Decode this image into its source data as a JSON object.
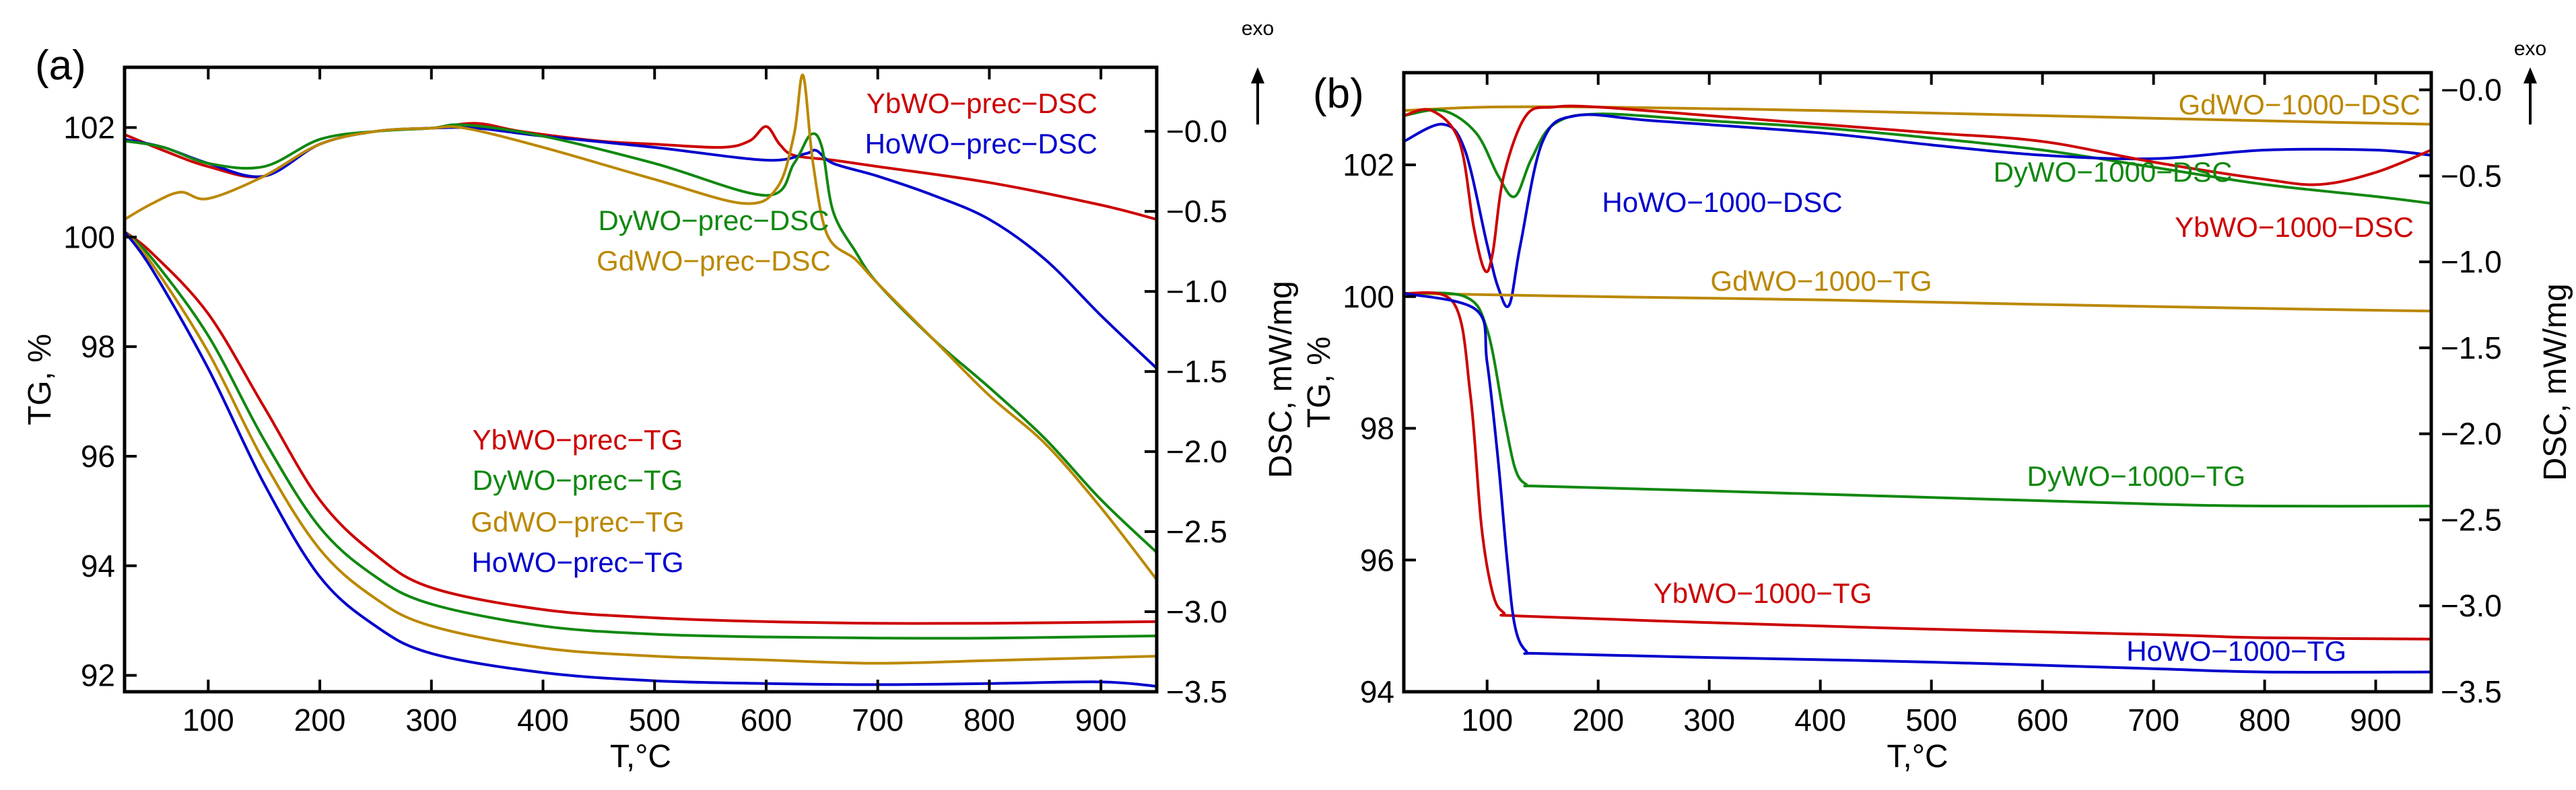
{
  "chart_data": [
    {
      "panel_label": "(a)",
      "type": "line",
      "xlabel": "T,°C",
      "ylabel_left": "TG, %",
      "ylabel_right": "DSC, mW/mg",
      "exo_label": "exo",
      "xlim": [
        25,
        950
      ],
      "ylim_left": [
        91.7,
        103.1
      ],
      "ylim_right": [
        -3.5,
        0.4
      ],
      "xticks": [
        100,
        200,
        300,
        400,
        500,
        600,
        700,
        800,
        900
      ],
      "yticks_left": [
        92,
        94,
        96,
        98,
        100,
        102
      ],
      "yticks_right": [
        -3.5,
        -3.0,
        -2.5,
        -2.0,
        -1.5,
        -1.0,
        -0.5,
        0.0
      ],
      "ytick_labels_right": [
        "−3.5",
        "−3.0",
        "−2.5",
        "−2.0",
        "−1.5",
        "−1.0",
        "−0.5",
        "−0.0"
      ],
      "series": [
        {
          "name": "YbWO−prec−DSC",
          "axis": "right",
          "color": "#cc0000",
          "x": [
            25,
            60,
            100,
            150,
            200,
            250,
            300,
            340,
            380,
            450,
            500,
            560,
            585,
            600,
            612,
            625,
            660,
            700,
            800,
            900,
            950
          ],
          "y": [
            -0.02,
            -0.12,
            -0.22,
            -0.28,
            -0.08,
            0.0,
            0.02,
            0.05,
            0.0,
            -0.06,
            -0.08,
            -0.1,
            -0.06,
            0.03,
            -0.08,
            -0.15,
            -0.18,
            -0.22,
            -0.32,
            -0.46,
            -0.55
          ]
        },
        {
          "name": "HoWO−prec−DSC",
          "axis": "right",
          "color": "#0000cc",
          "x": [
            25,
            60,
            100,
            150,
            200,
            250,
            300,
            340,
            400,
            500,
            600,
            635,
            645,
            660,
            700,
            750,
            800,
            850,
            900,
            950
          ],
          "y": [
            -0.05,
            -0.1,
            -0.2,
            -0.28,
            -0.08,
            0.0,
            0.02,
            0.02,
            -0.03,
            -0.1,
            -0.18,
            -0.14,
            -0.12,
            -0.2,
            -0.28,
            -0.4,
            -0.55,
            -0.8,
            -1.15,
            -1.48
          ]
        },
        {
          "name": "DyWO−prec−DSC",
          "axis": "right",
          "color": "#118811",
          "x": [
            25,
            60,
            100,
            150,
            200,
            250,
            300,
            330,
            400,
            500,
            600,
            625,
            640,
            650,
            660,
            680,
            700,
            750,
            800,
            850,
            900,
            950
          ],
          "y": [
            -0.06,
            -0.1,
            -0.2,
            -0.22,
            -0.05,
            0.0,
            0.02,
            0.04,
            -0.03,
            -0.2,
            -0.4,
            -0.2,
            -0.02,
            -0.1,
            -0.5,
            -0.75,
            -0.95,
            -1.3,
            -1.6,
            -1.92,
            -2.3,
            -2.63
          ]
        },
        {
          "name": "GdWO−prec−DSC",
          "axis": "right",
          "color": "#bb8800",
          "x": [
            25,
            50,
            75,
            100,
            150,
            200,
            250,
            300,
            330,
            400,
            500,
            580,
            610,
            625,
            633,
            642,
            655,
            680,
            700,
            750,
            800,
            850,
            900,
            950
          ],
          "y": [
            -0.55,
            -0.45,
            -0.38,
            -0.42,
            -0.28,
            -0.08,
            0.0,
            0.02,
            0.02,
            -0.1,
            -0.3,
            -0.45,
            -0.35,
            -0.02,
            0.35,
            -0.2,
            -0.65,
            -0.8,
            -0.95,
            -1.3,
            -1.65,
            -1.95,
            -2.35,
            -2.8
          ]
        },
        {
          "name": "YbWO−prec−TG",
          "axis": "left",
          "color": "#cc0000",
          "x": [
            25,
            50,
            100,
            150,
            200,
            250,
            300,
            400,
            500,
            600,
            700,
            800,
            950
          ],
          "y": [
            100.1,
            99.7,
            98.6,
            96.9,
            95.2,
            94.2,
            93.6,
            93.2,
            93.05,
            92.98,
            92.95,
            92.95,
            92.98
          ]
        },
        {
          "name": "DyWO−prec−TG",
          "axis": "left",
          "color": "#118811",
          "x": [
            25,
            50,
            100,
            150,
            200,
            250,
            300,
            400,
            500,
            600,
            700,
            800,
            950
          ],
          "y": [
            100.1,
            99.6,
            98.2,
            96.3,
            94.7,
            93.8,
            93.3,
            92.9,
            92.75,
            92.7,
            92.68,
            92.68,
            92.72
          ]
        },
        {
          "name": "GdWO−prec−TG",
          "axis": "left",
          "color": "#bb8800",
          "x": [
            25,
            50,
            100,
            150,
            200,
            250,
            300,
            400,
            500,
            600,
            700,
            800,
            950
          ],
          "y": [
            100.1,
            99.5,
            97.9,
            95.9,
            94.3,
            93.4,
            92.9,
            92.5,
            92.35,
            92.28,
            92.22,
            92.27,
            92.35
          ]
        },
        {
          "name": "HoWO−prec−TG",
          "axis": "left",
          "color": "#0000cc",
          "x": [
            25,
            50,
            100,
            150,
            200,
            250,
            300,
            400,
            500,
            600,
            700,
            800,
            900,
            950
          ],
          "y": [
            100.1,
            99.4,
            97.6,
            95.5,
            93.8,
            92.9,
            92.4,
            92.05,
            91.9,
            91.85,
            91.83,
            91.85,
            91.88,
            91.8
          ]
        }
      ],
      "annotations": [
        {
          "text": "YbWO−prec−DSC",
          "color": "#cc0000"
        },
        {
          "text": "HoWO−prec−DSC",
          "color": "#0000cc"
        },
        {
          "text": "DyWO−prec−DSC",
          "color": "#118811"
        },
        {
          "text": "GdWO−prec−DSC",
          "color": "#bb8800"
        },
        {
          "text": "YbWO−prec−TG",
          "color": "#cc0000"
        },
        {
          "text": "DyWO−prec−TG",
          "color": "#118811"
        },
        {
          "text": "GdWO−prec−TG",
          "color": "#bb8800"
        },
        {
          "text": "HoWO−prec−TG",
          "color": "#0000cc"
        }
      ]
    },
    {
      "panel_label": "(b)",
      "type": "line",
      "xlabel": "T,°C",
      "ylabel_left": "TG, %",
      "ylabel_right": "DSC, mW/mg",
      "exo_label": "exo",
      "xlim": [
        25,
        950
      ],
      "ylim_left": [
        94.0,
        103.4
      ],
      "ylim_right": [
        -3.5,
        0.1
      ],
      "xticks": [
        100,
        200,
        300,
        400,
        500,
        600,
        700,
        800,
        900
      ],
      "yticks_left": [
        94,
        96,
        98,
        100,
        102
      ],
      "yticks_right": [
        -3.5,
        -3.0,
        -2.5,
        -2.0,
        -1.5,
        -1.0,
        -0.5,
        0.0
      ],
      "ytick_labels_right": [
        "−3.5",
        "−3.0",
        "−2.5",
        "−2.0",
        "−1.5",
        "−1.0",
        "−0.5",
        "−0.0"
      ],
      "series": [
        {
          "name": "GdWO−1000−DSC",
          "axis": "right",
          "color": "#bb8800",
          "x": [
            25,
            100,
            200,
            400,
            600,
            800,
            950
          ],
          "y": [
            -0.12,
            -0.1,
            -0.1,
            -0.12,
            -0.15,
            -0.18,
            -0.2
          ]
        },
        {
          "name": "DyWO−1000−DSC",
          "axis": "right",
          "color": "#118811",
          "x": [
            25,
            60,
            90,
            110,
            125,
            140,
            160,
            200,
            300,
            400,
            500,
            600,
            700,
            800,
            900,
            950
          ],
          "y": [
            -0.15,
            -0.12,
            -0.25,
            -0.5,
            -0.62,
            -0.4,
            -0.2,
            -0.14,
            -0.18,
            -0.22,
            -0.28,
            -0.35,
            -0.45,
            -0.55,
            -0.62,
            -0.66
          ]
        },
        {
          "name": "HoWO−1000−DSC",
          "axis": "right",
          "color": "#0000cc",
          "x": [
            25,
            60,
            80,
            100,
            110,
            120,
            130,
            150,
            180,
            250,
            400,
            500,
            600,
            700,
            800,
            900,
            950
          ],
          "y": [
            -0.3,
            -0.2,
            -0.35,
            -0.9,
            -1.15,
            -1.25,
            -0.9,
            -0.3,
            -0.15,
            -0.18,
            -0.25,
            -0.32,
            -0.38,
            -0.4,
            -0.35,
            -0.35,
            -0.38
          ]
        },
        {
          "name": "YbWO−1000−DSC",
          "axis": "right",
          "color": "#cc0000",
          "x": [
            25,
            50,
            75,
            88,
            98,
            105,
            115,
            135,
            160,
            200,
            300,
            400,
            500,
            600,
            700,
            800,
            850,
            900,
            950
          ],
          "y": [
            -0.15,
            -0.12,
            -0.3,
            -0.8,
            -1.05,
            -0.95,
            -0.5,
            -0.15,
            -0.1,
            -0.1,
            -0.15,
            -0.2,
            -0.25,
            -0.3,
            -0.42,
            -0.52,
            -0.55,
            -0.48,
            -0.35
          ]
        },
        {
          "name": "GdWO−1000−TG",
          "axis": "left",
          "color": "#bb8800",
          "x": [
            25,
            200,
            400,
            600,
            800,
            950
          ],
          "y": [
            100.05,
            100.0,
            99.95,
            99.88,
            99.82,
            99.78
          ]
        },
        {
          "name": "DyWO−1000−TG",
          "axis": "left",
          "color": "#118811",
          "x": [
            25,
            80,
            100,
            115,
            125,
            135,
            150,
            300,
            500,
            700,
            800,
            950
          ],
          "y": [
            100.05,
            100.0,
            99.5,
            98.2,
            97.4,
            97.15,
            97.12,
            97.05,
            96.95,
            96.85,
            96.82,
            96.82
          ]
        },
        {
          "name": "YbWO−1000−TG",
          "axis": "left",
          "color": "#cc0000",
          "x": [
            25,
            70,
            85,
            95,
            105,
            115,
            130,
            300,
            500,
            700,
            800,
            950
          ],
          "y": [
            100.05,
            99.9,
            98.5,
            96.5,
            95.5,
            95.2,
            95.15,
            95.05,
            94.95,
            94.87,
            94.82,
            94.8
          ]
        },
        {
          "name": "HoWO−1000−TG",
          "axis": "left",
          "color": "#0000cc",
          "x": [
            25,
            90,
            100,
            110,
            118,
            125,
            135,
            150,
            300,
            500,
            700,
            800,
            950
          ],
          "y": [
            100.05,
            99.8,
            99.0,
            97.5,
            96.0,
            95.0,
            94.62,
            94.58,
            94.52,
            94.45,
            94.35,
            94.3,
            94.3
          ]
        }
      ],
      "annotations": [
        {
          "text": "GdWO−1000−DSC",
          "color": "#bb8800"
        },
        {
          "text": "DyWO−1000−DSC",
          "color": "#118811"
        },
        {
          "text": "HoWO−1000−DSC",
          "color": "#0000cc"
        },
        {
          "text": "YbWO−1000−DSC",
          "color": "#cc0000"
        },
        {
          "text": "GdWO−1000−TG",
          "color": "#bb8800"
        },
        {
          "text": "DyWO−1000−TG",
          "color": "#118811"
        },
        {
          "text": "YbWO−1000−TG",
          "color": "#cc0000"
        },
        {
          "text": "HoWO−1000−TG",
          "color": "#0000cc"
        }
      ]
    }
  ]
}
